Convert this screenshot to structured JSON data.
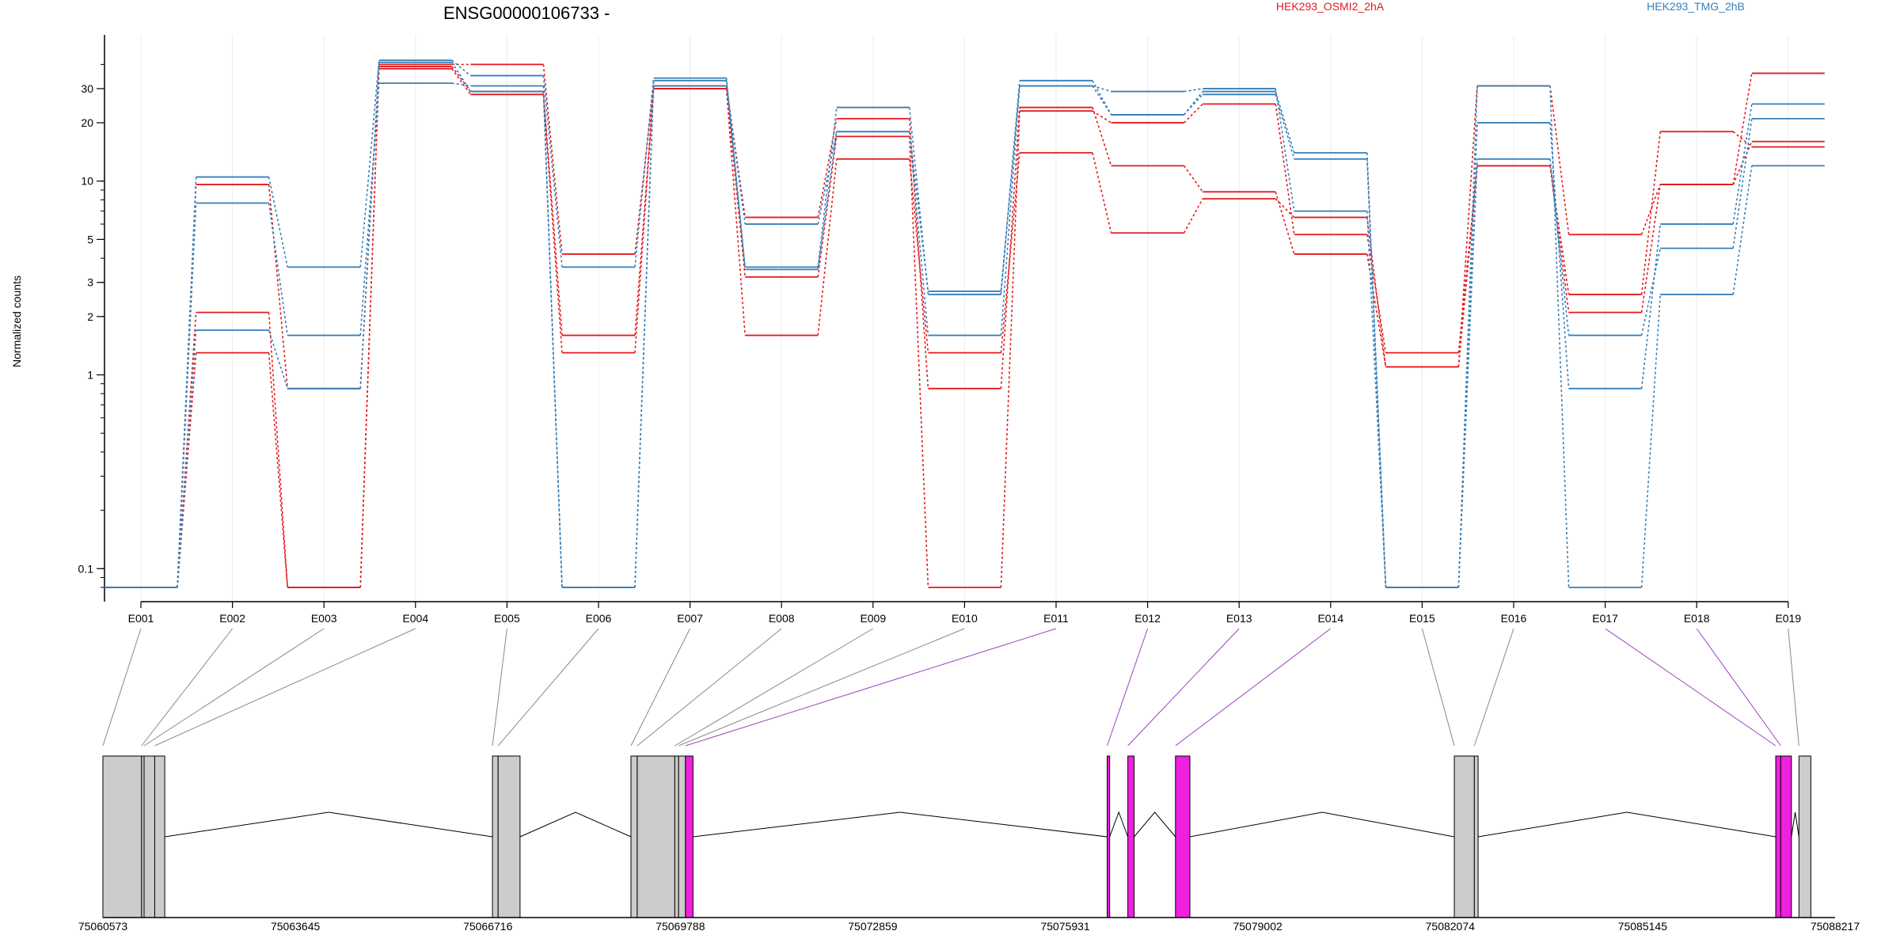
{
  "chart_data": {
    "type": "line",
    "title": "ENSG00000106733 -",
    "ylabel": "Normalized counts",
    "xlabel": "",
    "y_scale": "log",
    "ylim": [
      0.08,
      48
    ],
    "y_ticks": [
      0.1,
      1,
      2,
      3,
      5,
      10,
      20,
      30
    ],
    "y_tick_labels": [
      "0.1",
      "1",
      "2",
      "3",
      "5",
      "10",
      "20",
      "30"
    ],
    "grid": "vertical",
    "legend_position": "top",
    "categories": [
      "E001",
      "E002",
      "E003",
      "E004",
      "E005",
      "E006",
      "E007",
      "E008",
      "E009",
      "E010",
      "E011",
      "E012",
      "E013",
      "E014",
      "E015",
      "E016",
      "E017",
      "E018",
      "E019"
    ],
    "series": [
      {
        "name": "HEK293_OSMI2_2hA",
        "color": "#e41a1c",
        "values": [
          0.08,
          9.6,
          0.85,
          40,
          40,
          4.2,
          31,
          6.5,
          21,
          0.85,
          24,
          12,
          8.8,
          4.2,
          1.1,
          31,
          5.3,
          9.6,
          36
        ]
      },
      {
        "name": "",
        "color": "#e41a1c",
        "values": [
          0.08,
          2.1,
          0.08,
          39,
          29,
          1.6,
          30,
          3.2,
          17,
          0.08,
          23,
          20,
          25,
          5.3,
          1.3,
          12,
          2.1,
          9.6,
          16
        ]
      },
      {
        "name": "",
        "color": "#e41a1c",
        "values": [
          0.08,
          1.3,
          0.08,
          38,
          28,
          1.3,
          30,
          1.6,
          13,
          1.3,
          14,
          5.4,
          8.1,
          6.5,
          1.1,
          12,
          2.6,
          18,
          15
        ]
      },
      {
        "name": "HEK293_TMG_2hB",
        "color": "#377eb8",
        "values": [
          0.08,
          10.5,
          3.6,
          42,
          35,
          3.6,
          34,
          3.6,
          24,
          2.6,
          33,
          22,
          29,
          14,
          0.08,
          20,
          0.85,
          6.0,
          25
        ]
      },
      {
        "name": "",
        "color": "#377eb8",
        "values": [
          0.08,
          7.7,
          1.6,
          32,
          31,
          0.08,
          31,
          6.0,
          18,
          1.6,
          31,
          29,
          30,
          7.0,
          0.08,
          13,
          1.6,
          4.5,
          21
        ]
      },
      {
        "name": "",
        "color": "#377eb8",
        "values": [
          0.08,
          1.7,
          0.85,
          41,
          29,
          0.08,
          33,
          3.5,
          18,
          2.7,
          31,
          22,
          28,
          13,
          0.08,
          31,
          0.08,
          2.6,
          12
        ]
      }
    ],
    "genome_axis": {
      "range": [
        75060573,
        75088217
      ],
      "ticks": [
        75060573,
        75063645,
        75066716,
        75069788,
        75072859,
        75075931,
        75079002,
        75082074,
        75085145,
        75088217
      ],
      "tick_labels": [
        "75060573",
        "75063645",
        "75066716",
        "75069788",
        "75072859",
        "75075931",
        "75079002",
        "75082074",
        "75085145",
        "75088217"
      ]
    },
    "exons": [
      {
        "id": "E001",
        "start": 75060573,
        "end": 75061190,
        "significant": false
      },
      {
        "id": "E002",
        "start": 75061190,
        "end": 75061230,
        "significant": false
      },
      {
        "id": "E003",
        "start": 75061230,
        "end": 75061400,
        "significant": false
      },
      {
        "id": "E004",
        "start": 75061400,
        "end": 75061560,
        "significant": false
      },
      {
        "id": "E005",
        "start": 75066790,
        "end": 75066880,
        "significant": false
      },
      {
        "id": "E006",
        "start": 75066880,
        "end": 75067230,
        "significant": false
      },
      {
        "id": "E007",
        "start": 75069000,
        "end": 75069100,
        "significant": false
      },
      {
        "id": "E008",
        "start": 75069100,
        "end": 75069700,
        "significant": false
      },
      {
        "id": "E009",
        "start": 75069700,
        "end": 75069760,
        "significant": false
      },
      {
        "id": "E010",
        "start": 75069760,
        "end": 75069870,
        "significant": false
      },
      {
        "id": "E011",
        "start": 75069870,
        "end": 75069990,
        "significant": true
      },
      {
        "id": "E012",
        "start": 75076600,
        "end": 75076640,
        "significant": true
      },
      {
        "id": "E013",
        "start": 75076930,
        "end": 75077030,
        "significant": true
      },
      {
        "id": "E014",
        "start": 75077690,
        "end": 75077920,
        "significant": true
      },
      {
        "id": "E015",
        "start": 75082140,
        "end": 75082460,
        "significant": false
      },
      {
        "id": "E016",
        "start": 75082460,
        "end": 75082520,
        "significant": false
      },
      {
        "id": "E017",
        "start": 75087270,
        "end": 75087350,
        "significant": true
      },
      {
        "id": "E018",
        "start": 75087350,
        "end": 75087520,
        "significant": true
      },
      {
        "id": "E019",
        "start": 75087640,
        "end": 75087830,
        "significant": false
      }
    ],
    "introns_apex": [
      {
        "from": 75061560,
        "to": 75066790
      },
      {
        "from": 75067230,
        "to": 75069000
      },
      {
        "from": 75069990,
        "to": 75076600
      },
      {
        "from": 75076640,
        "to": 75076930
      },
      {
        "from": 75077030,
        "to": 75077690
      },
      {
        "from": 75077920,
        "to": 75082140
      },
      {
        "from": 75082520,
        "to": 75087270
      },
      {
        "from": 75087520,
        "to": 75087640
      }
    ]
  },
  "colors": {
    "exon_fill": "#cccccc",
    "exon_significant": "#f020e0",
    "connector_normal": "#888888",
    "connector_significant": "#a040c0",
    "axis": "#000000",
    "grid": "#ececec"
  }
}
